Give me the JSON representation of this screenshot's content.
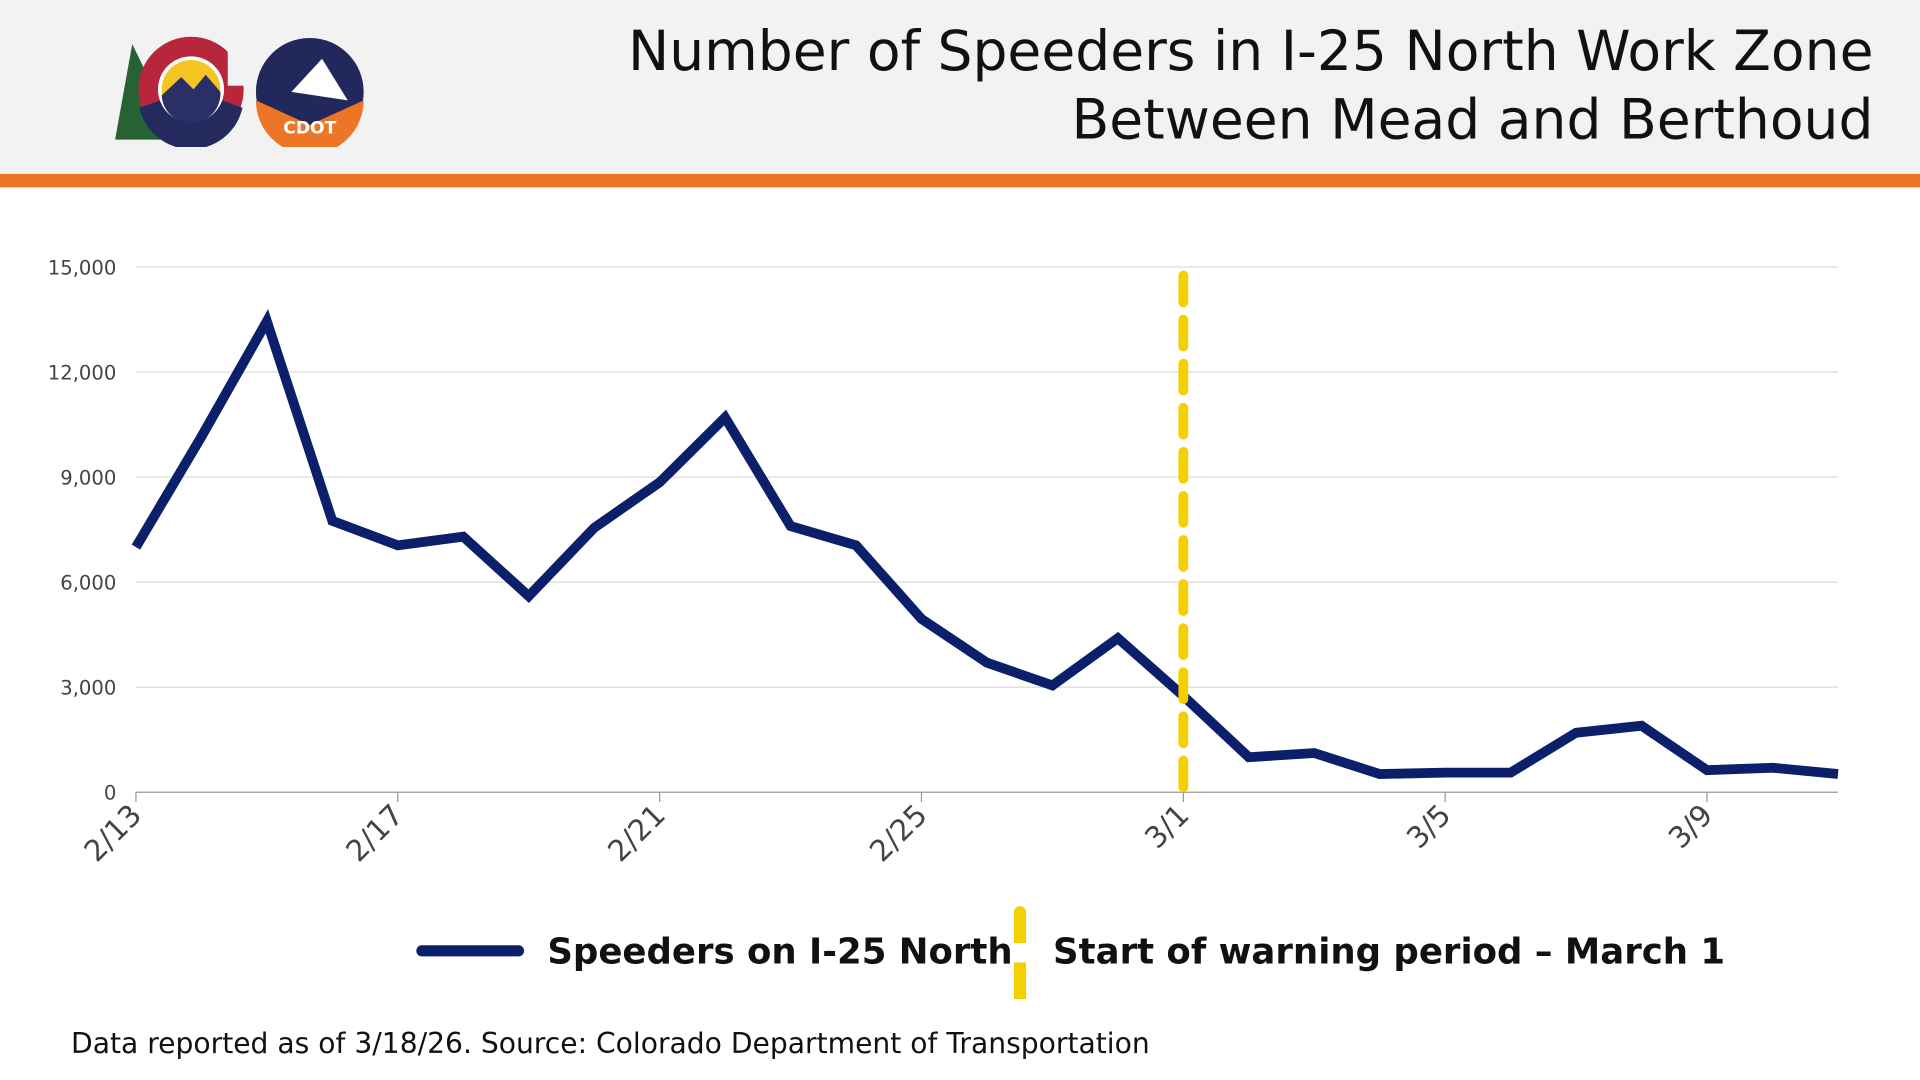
{
  "header": {
    "title_line1": "Number of Speeders in I-25 North Work Zone",
    "title_line2": "Between Mead and Berthoud",
    "logos": [
      "Colorado state logo",
      "CDOT"
    ],
    "logo_text": "CDOT"
  },
  "colors": {
    "series": "#0b1f6b",
    "marker": "#f5d000",
    "accent": "#ec7625",
    "header_bg": "#f2f2f2"
  },
  "chart_data": {
    "type": "line",
    "title": "Number of Speeders in I-25 North Work Zone Between Mead and Berthoud",
    "x": [
      "2/13",
      "2/14",
      "2/15",
      "2/16",
      "2/17",
      "2/18",
      "2/19",
      "2/20",
      "2/21",
      "2/22",
      "2/23",
      "2/24",
      "2/25",
      "2/26",
      "2/27",
      "2/28",
      "3/1",
      "3/2",
      "3/3",
      "3/4",
      "3/5",
      "3/6",
      "3/7",
      "3/8",
      "3/9",
      "3/10",
      "3/11"
    ],
    "x_tick_labels": [
      "2/13",
      "2/17",
      "2/21",
      "2/25",
      "3/1",
      "3/5",
      "3/9"
    ],
    "series": [
      {
        "name": "Speeders on I-25 North",
        "color": "#0b1f6b",
        "values": [
          7000,
          10150,
          13450,
          7750,
          7050,
          7300,
          5600,
          7550,
          8850,
          10700,
          7600,
          7050,
          4950,
          3700,
          3050,
          4400,
          2750,
          1000,
          1120,
          520,
          560,
          560,
          1700,
          1900,
          630,
          700,
          520
        ]
      }
    ],
    "annotations": [
      {
        "type": "vline",
        "x": "3/1",
        "label": "Start of warning period – March 1",
        "color": "#f5d000",
        "style": "dashed"
      }
    ],
    "ylim": [
      0,
      15000
    ],
    "y_ticks": [
      "0",
      "3,000",
      "6,000",
      "9,000",
      "12,000",
      "15,000"
    ],
    "y_tick_values": [
      0,
      3000,
      6000,
      9000,
      12000,
      15000
    ],
    "grid": "horizontal",
    "legend_position": "bottom"
  },
  "footer": {
    "source": "Data reported as of 3/18/26. Source: Colorado Department of Transportation"
  }
}
